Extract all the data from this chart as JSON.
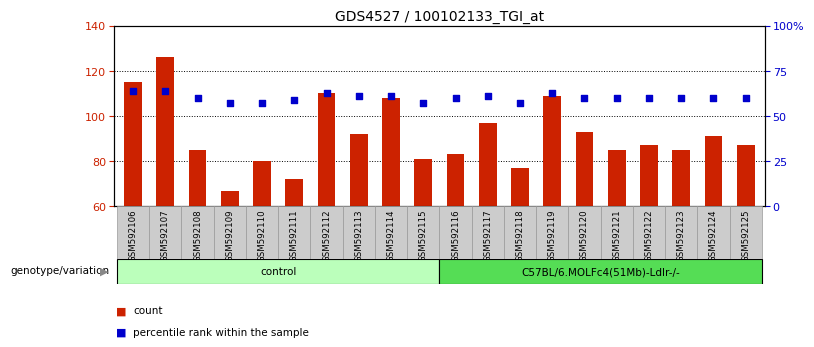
{
  "title": "GDS4527 / 100102133_TGI_at",
  "samples": [
    "GSM592106",
    "GSM592107",
    "GSM592108",
    "GSM592109",
    "GSM592110",
    "GSM592111",
    "GSM592112",
    "GSM592113",
    "GSM592114",
    "GSM592115",
    "GSM592116",
    "GSM592117",
    "GSM592118",
    "GSM592119",
    "GSM592120",
    "GSM592121",
    "GSM592122",
    "GSM592123",
    "GSM592124",
    "GSM592125"
  ],
  "bar_values": [
    115,
    126,
    85,
    67,
    80,
    72,
    110,
    92,
    108,
    81,
    83,
    97,
    77,
    109,
    93,
    85,
    87,
    85,
    91,
    87
  ],
  "dot_values": [
    111,
    111,
    108,
    106,
    106,
    107,
    110,
    109,
    109,
    106,
    108,
    109,
    106,
    110,
    108,
    108,
    108,
    108,
    108,
    108
  ],
  "ylim_left": [
    60,
    140
  ],
  "yticks_left": [
    60,
    80,
    100,
    120,
    140
  ],
  "ylim_right": [
    0,
    100
  ],
  "yticks_right": [
    0,
    25,
    50,
    75,
    100
  ],
  "yticklabels_right": [
    "0",
    "25",
    "50",
    "75",
    "100%"
  ],
  "bar_color": "#cc2200",
  "dot_color": "#0000cc",
  "grid_color": "#000000",
  "groups": [
    {
      "label": "control",
      "start": 0,
      "end": 10,
      "color": "#bbffbb"
    },
    {
      "label": "C57BL/6.MOLFc4(51Mb)-Ldlr-/-",
      "start": 10,
      "end": 20,
      "color": "#55dd55"
    }
  ],
  "group_label_prefix": "genotype/variation",
  "legend_items": [
    {
      "color": "#cc2200",
      "label": "count"
    },
    {
      "color": "#0000cc",
      "label": "percentile rank within the sample"
    }
  ],
  "bg_color": "#ffffff",
  "plot_bg_color": "#ffffff",
  "tick_label_bg": "#cccccc",
  "title_fontsize": 10,
  "axis_label_color_left": "#cc2200",
  "axis_label_color_right": "#0000cc"
}
